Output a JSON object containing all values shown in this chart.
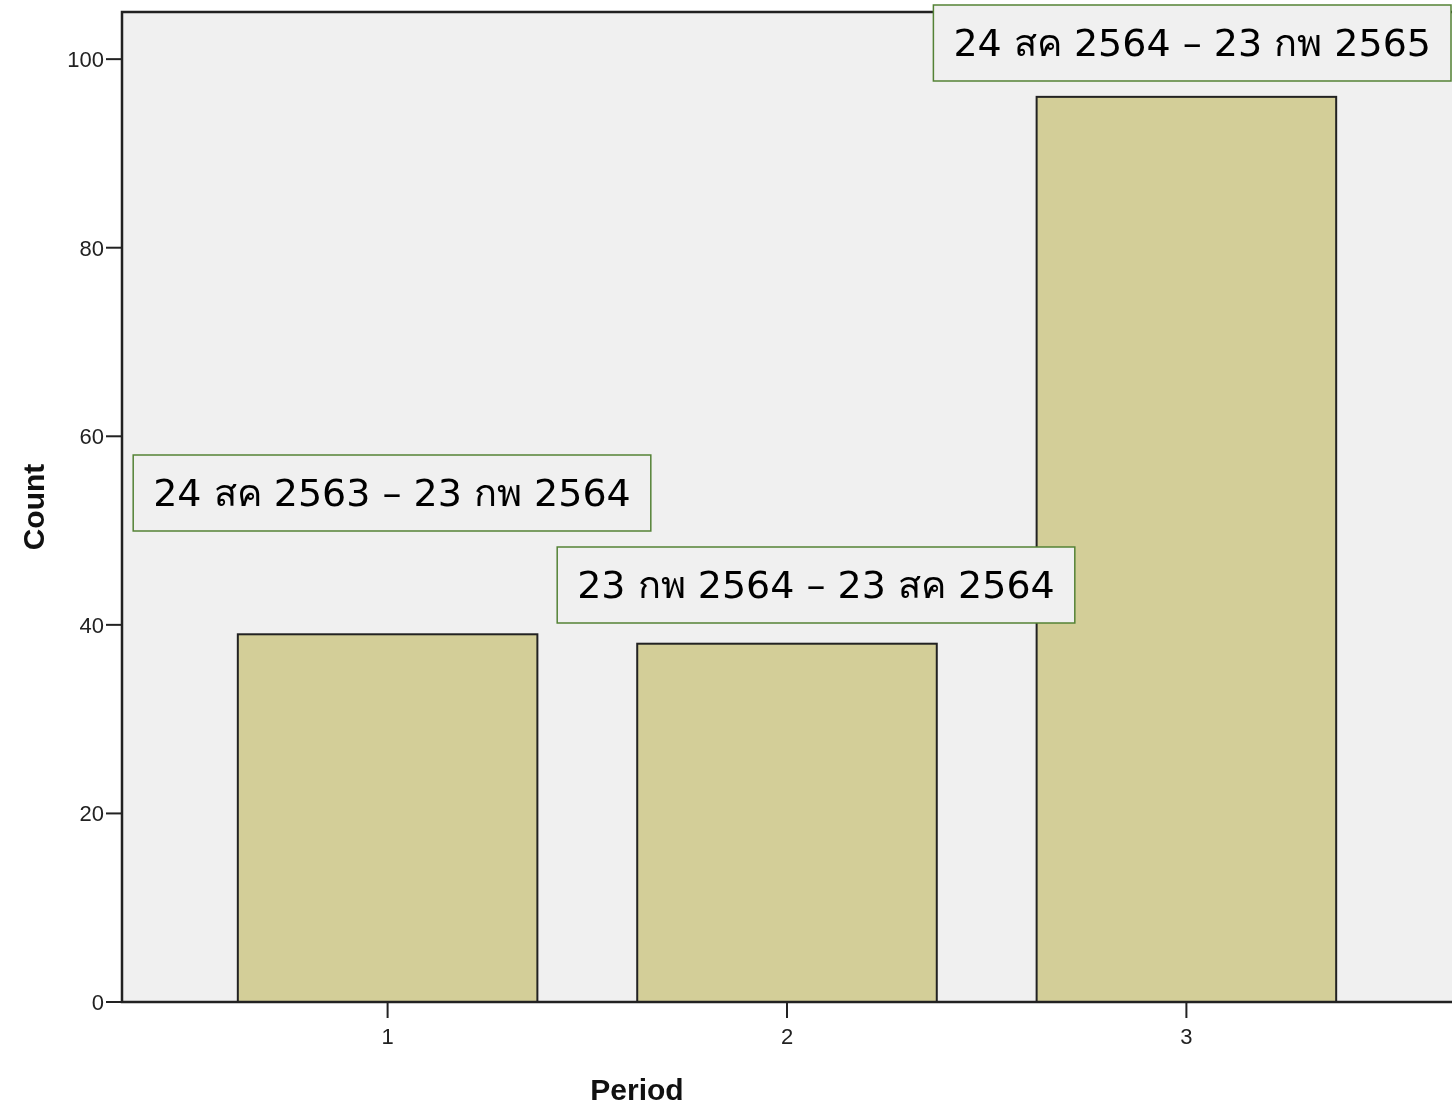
{
  "chart_data": {
    "type": "bar",
    "xlabel": "Period",
    "ylabel": "Count",
    "categories": [
      "1",
      "2",
      "3"
    ],
    "values": [
      39,
      38,
      96
    ],
    "color": "#d3ce98",
    "ylim": [
      0,
      105
    ],
    "yticks": [
      0,
      20,
      40,
      60,
      80,
      100
    ],
    "annotations": [
      "24 สค 2563 – 23 กพ 2564",
      "23 กพ 2564 – 23 สค 2564",
      "24 สค 2564 – 23 กพ 2565"
    ]
  }
}
